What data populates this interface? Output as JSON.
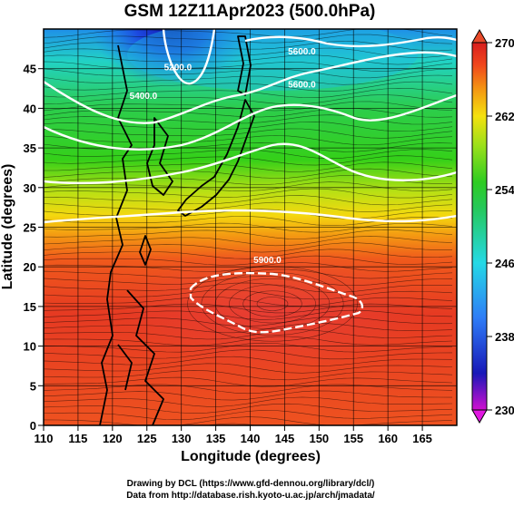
{
  "title": "GSM 12Z11Apr2023 (500.0hPa)",
  "xlabel": "Longitude (degrees)",
  "ylabel": "Latitude  (degrees)",
  "footer": {
    "line1": "Drawing by DCL (https://www.gfd-dennou.org/library/dcl/)",
    "line2": "Data from http://database.rish.kyoto-u.ac.jp/arch/jmadata/"
  },
  "chart_data": {
    "type": "heatmap",
    "xlim": [
      110,
      170
    ],
    "ylim": [
      0,
      50
    ],
    "x_ticks": [
      110,
      115,
      120,
      125,
      130,
      135,
      140,
      145,
      150,
      155,
      160,
      165
    ],
    "y_ticks": [
      0,
      5,
      10,
      15,
      20,
      25,
      30,
      35,
      40,
      45
    ],
    "grid": true,
    "colorbar": {
      "min": 230,
      "max": 270,
      "ticks": [
        230,
        238,
        246,
        254,
        262,
        270
      ],
      "placement": "right",
      "colors": [
        "#d010d0",
        "#1818b8",
        "#2e7cf6",
        "#25d9e6",
        "#25c85a",
        "#2ecc22",
        "#9be01a",
        "#f4e10f",
        "#f49a12",
        "#f0461c",
        "#d81e1e"
      ]
    },
    "contour_labels": [
      {
        "text": "5600.0",
        "lon": 147.5,
        "lat": 46.8
      },
      {
        "text": "5600.0",
        "lon": 147.5,
        "lat": 42.6
      },
      {
        "text": "5400.0",
        "lon": 124.5,
        "lat": 41.2
      },
      {
        "text": "5200.0",
        "lon": 129.5,
        "lat": 44.8
      },
      {
        "text": "5900.0",
        "lon": 142.5,
        "lat": 20.5
      }
    ]
  }
}
